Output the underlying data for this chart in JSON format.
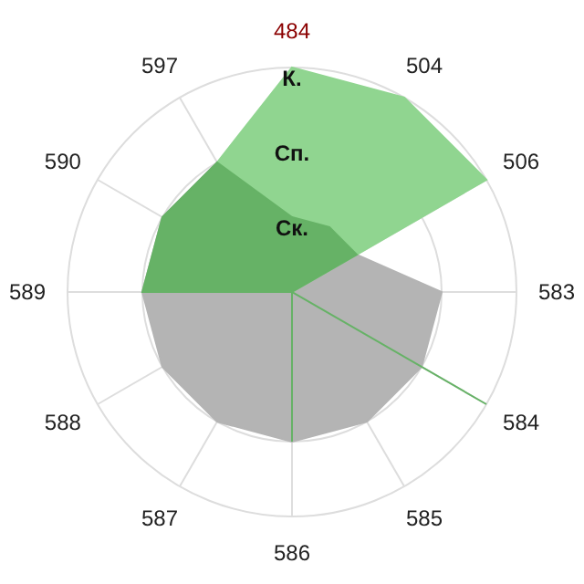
{
  "chart_data": {
    "type": "radar",
    "categories": [
      "484",
      "504",
      "506",
      "583",
      "584",
      "585",
      "586",
      "587",
      "588",
      "589",
      "590",
      "597"
    ],
    "ylim": [
      0,
      3
    ],
    "yticks": [
      {
        "value": 1,
        "label": "Ск."
      },
      {
        "value": 2,
        "label": "Сп."
      },
      {
        "value": 3,
        "label": "К."
      }
    ],
    "grid": true,
    "legend": false,
    "series": [
      {
        "color": "#b4b4b4",
        "values": [
          0,
          0,
          1,
          2,
          2,
          2,
          2,
          2,
          2,
          2,
          2,
          2
        ]
      },
      {
        "color": "#90d590",
        "values": [
          3,
          3,
          3,
          0,
          0,
          0,
          0,
          0,
          0,
          0,
          0,
          2
        ]
      },
      {
        "color": "#66b266",
        "values": [
          1,
          1,
          1,
          0,
          3,
          0,
          2,
          0,
          0,
          2,
          2,
          2
        ]
      }
    ]
  }
}
